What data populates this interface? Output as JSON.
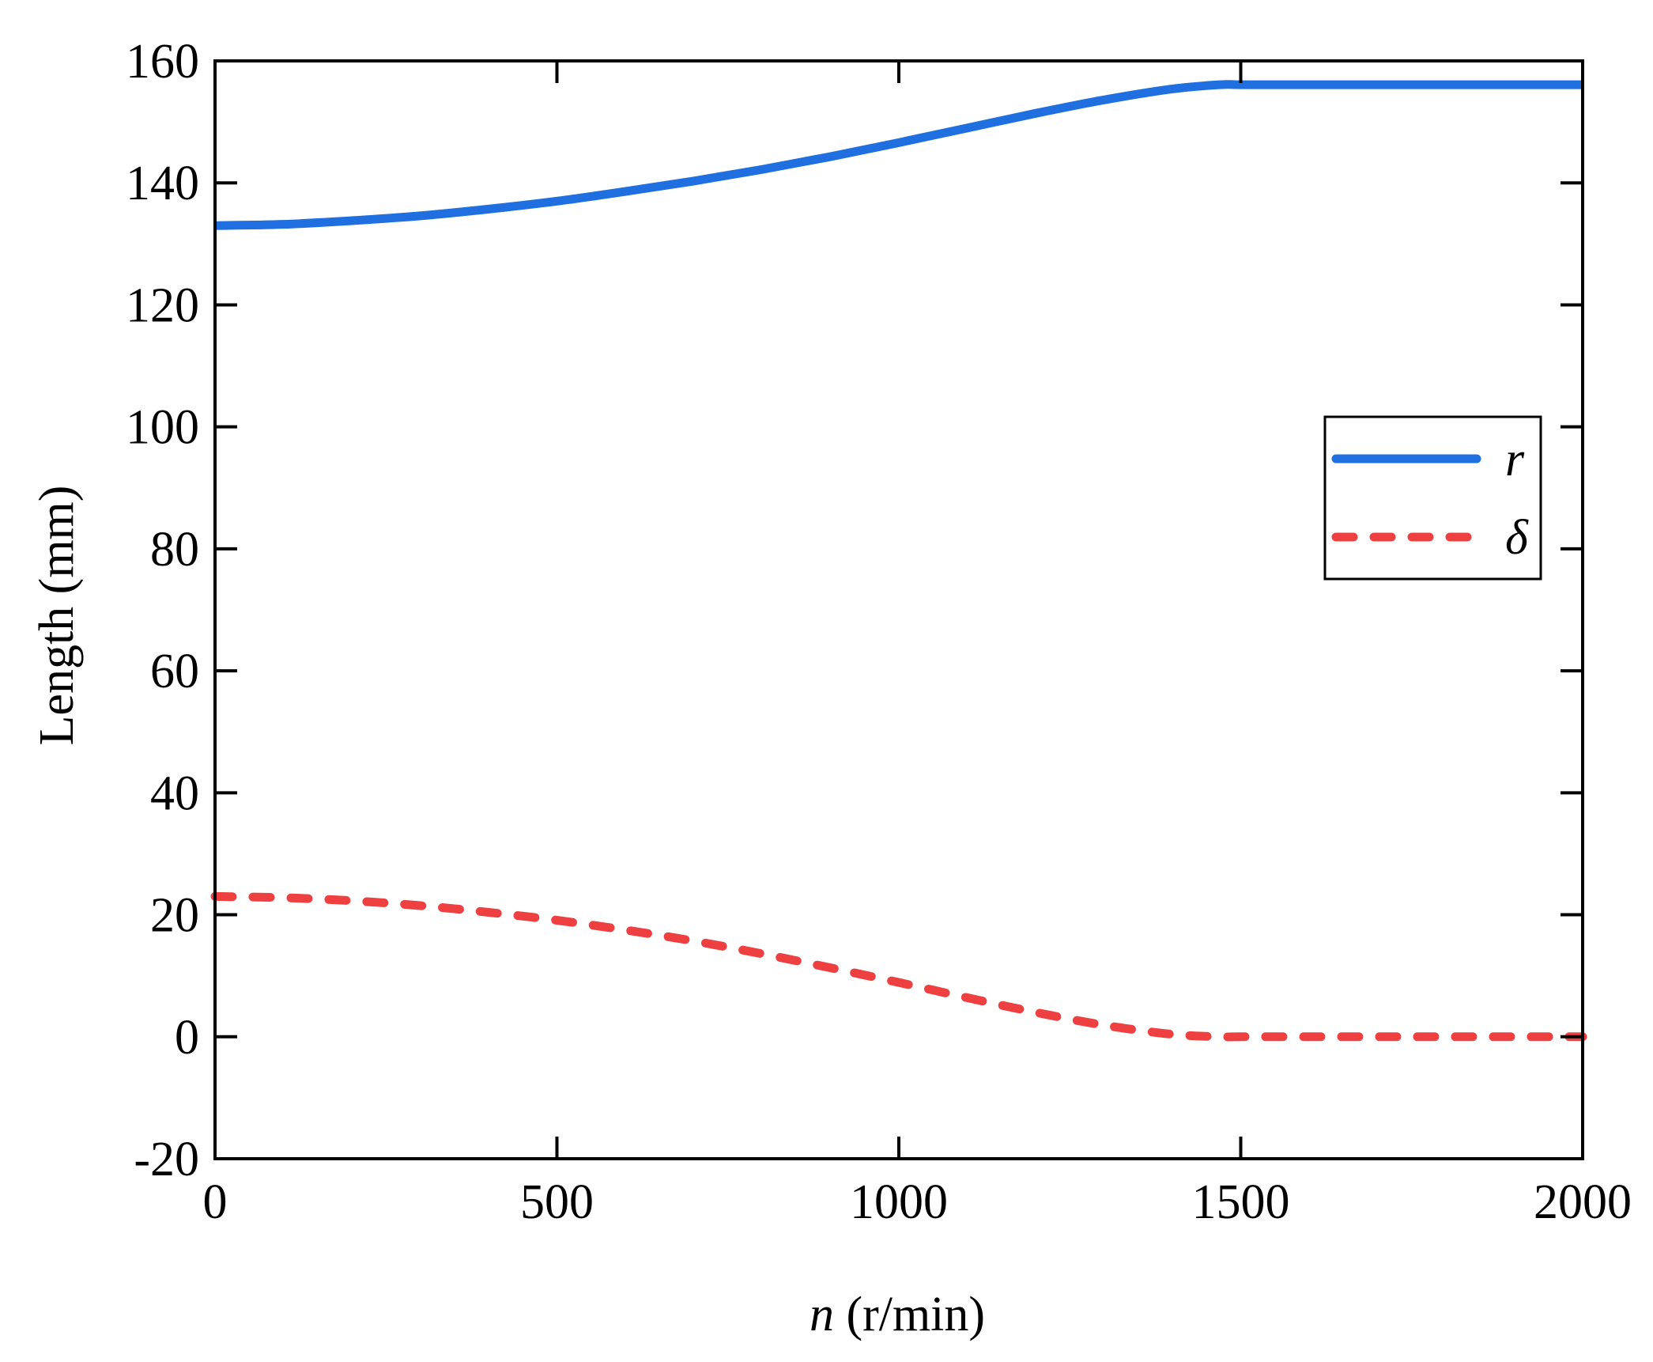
{
  "chart_data": {
    "type": "line",
    "title": "",
    "xlabel_italic": "n",
    "xlabel_rest": " (r/min)",
    "ylabel": "Length (mm)",
    "xlim": [
      0,
      2000
    ],
    "ylim": [
      -20,
      160
    ],
    "xticks": [
      0,
      500,
      1000,
      1500,
      2000
    ],
    "xtick_labels": [
      "0",
      "500",
      "1000",
      "1500",
      "2000"
    ],
    "yticks": [
      -20,
      0,
      20,
      40,
      60,
      80,
      100,
      120,
      140,
      160
    ],
    "ytick_labels": [
      "-20",
      "0",
      "20",
      "40",
      "60",
      "80",
      "100",
      "120",
      "140",
      "160"
    ],
    "grid": false,
    "legend_position": "right",
    "series": [
      {
        "name": "r",
        "style": "solid",
        "color": "#1f6fe0",
        "x": [
          0,
          100,
          200,
          300,
          400,
          500,
          600,
          700,
          800,
          900,
          1000,
          1100,
          1200,
          1300,
          1400,
          1470,
          1500,
          1600,
          1700,
          1800,
          1900,
          2000
        ],
        "y": [
          133,
          133.2,
          133.8,
          134.6,
          135.7,
          137.0,
          138.6,
          140.3,
          142.2,
          144.3,
          146.6,
          149.0,
          151.4,
          153.6,
          155.4,
          156.1,
          156.1,
          156.1,
          156.1,
          156.1,
          156.1,
          156.1
        ]
      },
      {
        "name": "δ",
        "style": "dashed",
        "color": "#ee4040",
        "x": [
          0,
          100,
          200,
          300,
          400,
          500,
          600,
          700,
          800,
          900,
          1000,
          1100,
          1200,
          1300,
          1400,
          1470,
          1500,
          1600,
          1700,
          1800,
          1900,
          2000
        ],
        "y": [
          23,
          22.8,
          22.3,
          21.5,
          20.4,
          19.1,
          17.5,
          15.7,
          13.6,
          11.3,
          8.9,
          6.4,
          4.0,
          1.9,
          0.4,
          0,
          0,
          0,
          0,
          0,
          0,
          0
        ]
      }
    ]
  }
}
